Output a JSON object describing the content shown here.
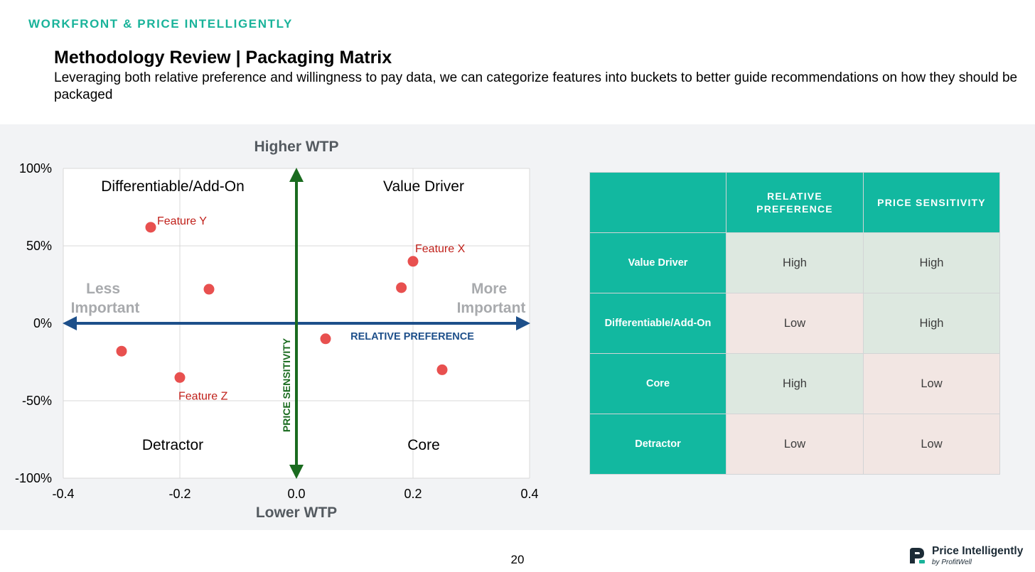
{
  "header": {
    "brand": "WORKFRONT & PRICE INTELLIGENTLY",
    "title": "Methodology Review | Packaging Matrix",
    "subtitle": "Leveraging both relative preference and willingness to pay data, we can categorize features into buckets to better guide recommendations on how they should be packaged"
  },
  "chart_data": {
    "type": "scatter",
    "x": [
      -0.25,
      -0.15,
      -0.3,
      -0.2,
      0.05,
      0.18,
      0.2,
      0.25
    ],
    "y": [
      0.62,
      0.22,
      -0.18,
      -0.35,
      -0.1,
      0.23,
      0.4,
      -0.3
    ],
    "point_labels": [
      "Feature Y",
      "",
      "",
      "Feature Z",
      "",
      "",
      "Feature X",
      ""
    ],
    "xlim": [
      -0.4,
      0.4
    ],
    "ylim": [
      -1,
      1
    ],
    "x_ticks": [
      -0.4,
      -0.2,
      0.0,
      0.2,
      0.4
    ],
    "x_tick_labels": [
      "-0.4",
      "-0.2",
      "0.0",
      "0.2",
      "0.4"
    ],
    "y_ticks": [
      1,
      0.5,
      0,
      -0.5,
      -1
    ],
    "y_tick_labels": [
      "100%",
      "50%",
      "0%",
      "-50%",
      "-100%"
    ],
    "grid": true,
    "top_label": "Higher WTP",
    "bottom_label": "Lower WTP",
    "left_label": [
      "Less",
      "Important"
    ],
    "right_label": [
      "More",
      "Important"
    ],
    "x_axis_arrow_label": "RELATIVE PREFERENCE",
    "y_axis_arrow_label": "PRICE SENSITIVITY",
    "quadrants": {
      "top_left": "Differentiable/Add-On",
      "top_right": "Value Driver",
      "bottom_left": "Detractor",
      "bottom_right": "Core"
    },
    "colors": {
      "points": "#e8504f",
      "point_labels": "#c0201a",
      "x_arrow": "#1d4f8a",
      "y_arrow": "#1a6b1f",
      "side_labels": "#a8aaad",
      "grid": "#d9d9d9"
    }
  },
  "matrix": {
    "headers": [
      "",
      "RELATIVE PREFERENCE",
      "PRICE SENSITIVITY"
    ],
    "rows": [
      {
        "label": "Value Driver",
        "relative_preference": "High",
        "price_sensitivity": "High"
      },
      {
        "label": "Differentiable/Add-On",
        "relative_preference": "Low",
        "price_sensitivity": "High"
      },
      {
        "label": "Core",
        "relative_preference": "High",
        "price_sensitivity": "Low"
      },
      {
        "label": "Detractor",
        "relative_preference": "Low",
        "price_sensitivity": "Low"
      }
    ],
    "colors": {
      "header": "#12b8a0",
      "high": "#dde8e0",
      "low": "#f2e6e3"
    }
  },
  "footer": {
    "page_number": "20",
    "logo_name": "Price Intelligently",
    "logo_by": "by ProfitWell",
    "logo_icon": "price-intelligently-logo-icon"
  }
}
